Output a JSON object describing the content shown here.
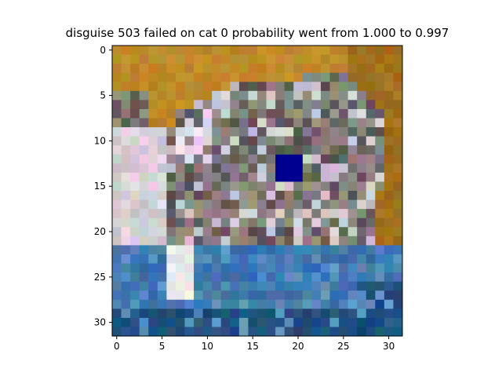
{
  "chart_data": {
    "type": "heatmap",
    "title": "disguise 503 failed on cat 0 probability went from 1.000 to 0.997",
    "xlabel": "",
    "ylabel": "",
    "xlim": [
      -0.5,
      31.5
    ],
    "ylim": [
      31.5,
      -0.5
    ],
    "xticks": [
      0,
      5,
      10,
      15,
      20,
      25,
      30
    ],
    "yticks": [
      0,
      5,
      10,
      15,
      20,
      25,
      30
    ],
    "grid": false,
    "image_size": [
      32,
      32
    ],
    "overlay": {
      "label": "",
      "x_range": [
        18,
        20
      ],
      "y_range": [
        12,
        14
      ],
      "color": "#000090"
    },
    "palette": {
      "bg": "#bf8a2a",
      "bg_dark": "#a2701e",
      "cat_gray": "#8b8580",
      "cat_dark": "#5e5a58",
      "cat_light": "#cfcbd1",
      "white": "#ecebeb",
      "pink": "#e6d6e4",
      "blue": "#3f77ae",
      "blue_dark": "#1f4f7d",
      "blue_light": "#5a8fc0"
    }
  }
}
